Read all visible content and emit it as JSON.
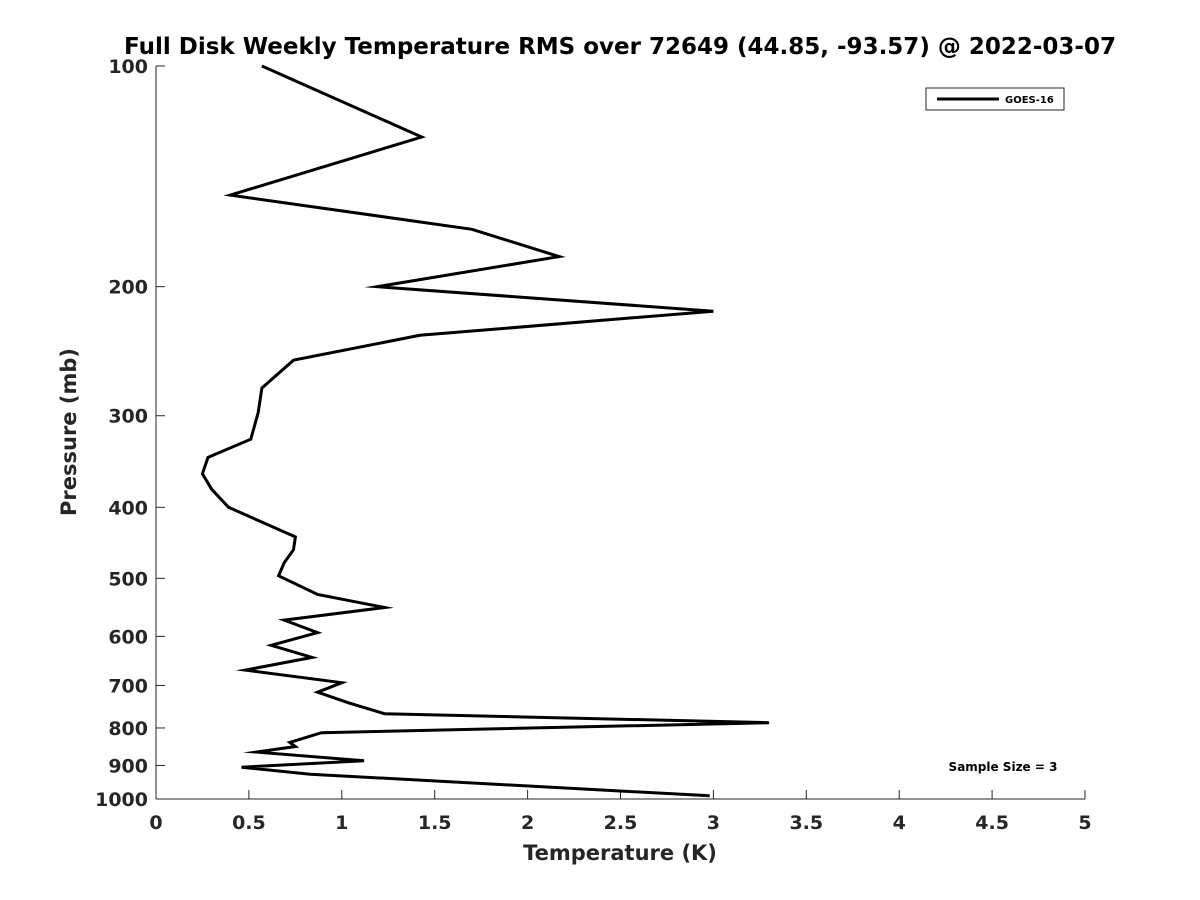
{
  "chart_data": {
    "type": "line",
    "title": "Full Disk Weekly Temperature RMS over 72649 (44.85, -93.57) @ 2022-03-07",
    "xlabel": "Temperature (K)",
    "ylabel": "Pressure (mb)",
    "xlim": [
      0,
      5
    ],
    "ylim": [
      100,
      1000
    ],
    "y_scale": "log",
    "y_reversed": true,
    "x_ticks": [
      0,
      0.5,
      1,
      1.5,
      2,
      2.5,
      3,
      3.5,
      4,
      4.5,
      5
    ],
    "x_tick_labels": [
      "0",
      "0.5",
      "1",
      "1.5",
      "2",
      "2.5",
      "3",
      "3.5",
      "4",
      "4.5",
      "5"
    ],
    "y_ticks": [
      100,
      200,
      300,
      400,
      500,
      600,
      700,
      800,
      900,
      1000
    ],
    "y_tick_labels": [
      "100",
      "200",
      "300",
      "400",
      "500",
      "600",
      "700",
      "800",
      "900",
      "1000"
    ],
    "grid": false,
    "legend_position": "top-right",
    "annotation": "Sample Size = 3",
    "line_color": "#000000",
    "series": [
      {
        "name": "GOES-16",
        "x": [
          0.57,
          1.43,
          0.4,
          1.7,
          2.17,
          1.19,
          3.0,
          1.42,
          0.74,
          0.57,
          0.55,
          0.51,
          0.28,
          0.25,
          0.3,
          0.39,
          0.75,
          0.74,
          0.69,
          0.66,
          0.87,
          1.23,
          0.69,
          0.87,
          0.62,
          0.84,
          0.48,
          1.0,
          0.87,
          1.04,
          1.23,
          3.3,
          0.89,
          0.72,
          0.75,
          0.54,
          1.12,
          0.46,
          0.83,
          2.98
        ],
        "y": [
          100,
          125,
          150,
          167,
          182,
          200,
          216,
          233,
          252,
          275,
          297,
          323,
          342,
          360,
          378,
          400,
          439,
          457,
          476,
          496,
          526,
          548,
          570,
          593,
          617,
          641,
          667,
          694,
          715,
          740,
          765,
          787,
          812,
          837,
          848,
          863,
          887,
          905,
          925,
          990
        ]
      }
    ]
  }
}
